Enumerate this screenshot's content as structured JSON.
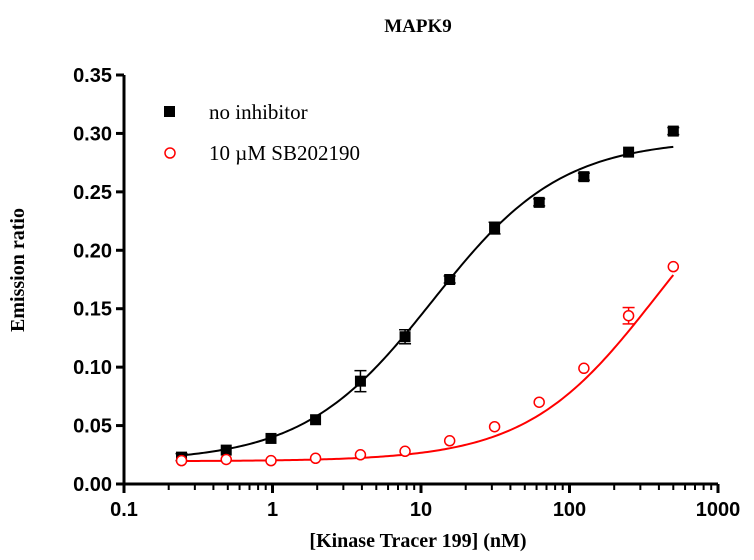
{
  "chart_data": {
    "type": "scatter",
    "title": "MAPK9",
    "xlabel": "[Kinase Tracer 199] (nM)",
    "ylabel": "Emission ratio",
    "x_scale": "log",
    "xlim": [
      0.1,
      1000
    ],
    "ylim": [
      0,
      0.35
    ],
    "x_ticks": [
      0.1,
      1,
      10,
      100,
      1000
    ],
    "x_tick_labels": [
      "0.1",
      "1",
      "10",
      "100",
      "1000"
    ],
    "y_ticks": [
      0,
      0.05,
      0.1,
      0.15,
      0.2,
      0.25,
      0.3,
      0.35
    ],
    "y_tick_labels": [
      "0.00",
      "0.05",
      "0.10",
      "0.15",
      "0.20",
      "0.25",
      "0.30",
      "0.35"
    ],
    "grid": false,
    "legend_position": "top-left",
    "series": [
      {
        "name": "no inhibitor",
        "color": "#000000",
        "marker": "filled-square",
        "x": [
          0.244,
          0.488,
          0.977,
          1.95,
          3.91,
          7.81,
          15.6,
          31.3,
          62.5,
          125,
          250,
          500
        ],
        "y": [
          0.023,
          0.029,
          0.039,
          0.055,
          0.088,
          0.126,
          0.175,
          0.219,
          0.241,
          0.263,
          0.284,
          0.302
        ],
        "error": [
          0.003,
          0.002,
          0.002,
          0.002,
          0.009,
          0.006,
          0.003,
          0.005,
          0.003,
          0.003,
          0.002,
          0.003
        ],
        "fit": {
          "bottom": 0.019,
          "top": 0.295,
          "ec50": 12.0,
          "hill": 1.0
        }
      },
      {
        "name": "10 µM SB202190",
        "color": "#ff0000",
        "marker": "open-circle",
        "x": [
          0.244,
          0.488,
          0.977,
          1.95,
          3.91,
          7.81,
          15.6,
          31.3,
          62.5,
          125,
          250,
          500
        ],
        "y": [
          0.02,
          0.021,
          0.02,
          0.022,
          0.025,
          0.028,
          0.037,
          0.049,
          0.07,
          0.099,
          0.144,
          0.186
        ],
        "error": [
          0.001,
          0.001,
          0.001,
          0.001,
          0.001,
          0.001,
          0.001,
          0.002,
          0.002,
          0.002,
          0.007,
          0.002
        ],
        "fit": {
          "bottom": 0.0195,
          "top": 0.3,
          "ec50": 380,
          "hill": 1.0
        }
      }
    ]
  }
}
